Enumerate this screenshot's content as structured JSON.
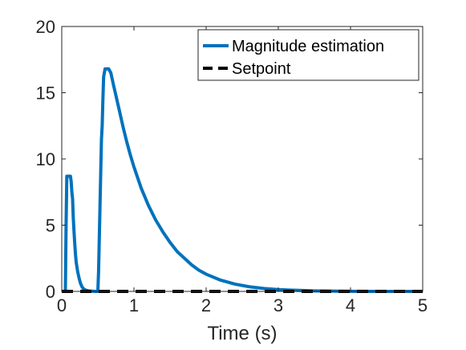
{
  "chart_data": {
    "type": "line",
    "title": "",
    "xlabel": "Time (s)",
    "ylabel": "",
    "xlim": [
      0,
      5
    ],
    "ylim": [
      0,
      20
    ],
    "xticks": [
      0,
      1,
      2,
      3,
      4,
      5
    ],
    "yticks": [
      0,
      5,
      10,
      15,
      20
    ],
    "legend": {
      "placement": "top-right",
      "entries": [
        "Magnitude estimation",
        "Setpoint"
      ]
    },
    "grid": false,
    "series": [
      {
        "name": "Magnitude estimation",
        "color": "#0072bd",
        "style": "solid",
        "x": [
          0,
          0.05,
          0.06,
          0.07,
          0.08,
          0.09,
          0.12,
          0.13,
          0.14,
          0.15,
          0.16,
          0.17,
          0.18,
          0.19,
          0.2,
          0.22,
          0.24,
          0.26,
          0.28,
          0.3,
          0.33,
          0.36,
          0.4,
          0.44,
          0.48,
          0.5,
          0.51,
          0.52,
          0.53,
          0.54,
          0.55,
          0.56,
          0.57,
          0.58,
          0.59,
          0.6,
          0.62,
          0.65,
          0.68,
          0.7,
          0.72,
          0.75,
          0.8,
          0.85,
          0.9,
          0.95,
          1.0,
          1.1,
          1.2,
          1.3,
          1.4,
          1.5,
          1.6,
          1.7,
          1.8,
          1.9,
          2.0,
          2.2,
          2.4,
          2.6,
          2.8,
          3.0,
          3.2,
          3.5,
          4.0,
          4.5,
          5.0
        ],
        "y": [
          0,
          0,
          5.0,
          8.7,
          8.7,
          8.7,
          8.7,
          8.3,
          7.5,
          7.0,
          5.5,
          4.5,
          3.6,
          2.8,
          2.2,
          1.5,
          1.0,
          0.6,
          0.35,
          0.2,
          0.1,
          0.05,
          0.02,
          0.01,
          0.0,
          0.0,
          1.5,
          4.0,
          6.5,
          9.0,
          11.5,
          12.5,
          14.5,
          16.2,
          16.5,
          16.8,
          16.8,
          16.8,
          16.5,
          16.0,
          15.5,
          14.8,
          13.6,
          12.4,
          11.3,
          10.3,
          9.4,
          7.8,
          6.5,
          5.4,
          4.5,
          3.7,
          3.0,
          2.5,
          2.0,
          1.6,
          1.3,
          0.85,
          0.55,
          0.35,
          0.22,
          0.14,
          0.09,
          0.04,
          0.01,
          0.0,
          0.0
        ]
      },
      {
        "name": "Setpoint",
        "color": "#000000",
        "style": "dashed",
        "x": [
          0,
          5
        ],
        "y": [
          0,
          0
        ]
      }
    ]
  }
}
